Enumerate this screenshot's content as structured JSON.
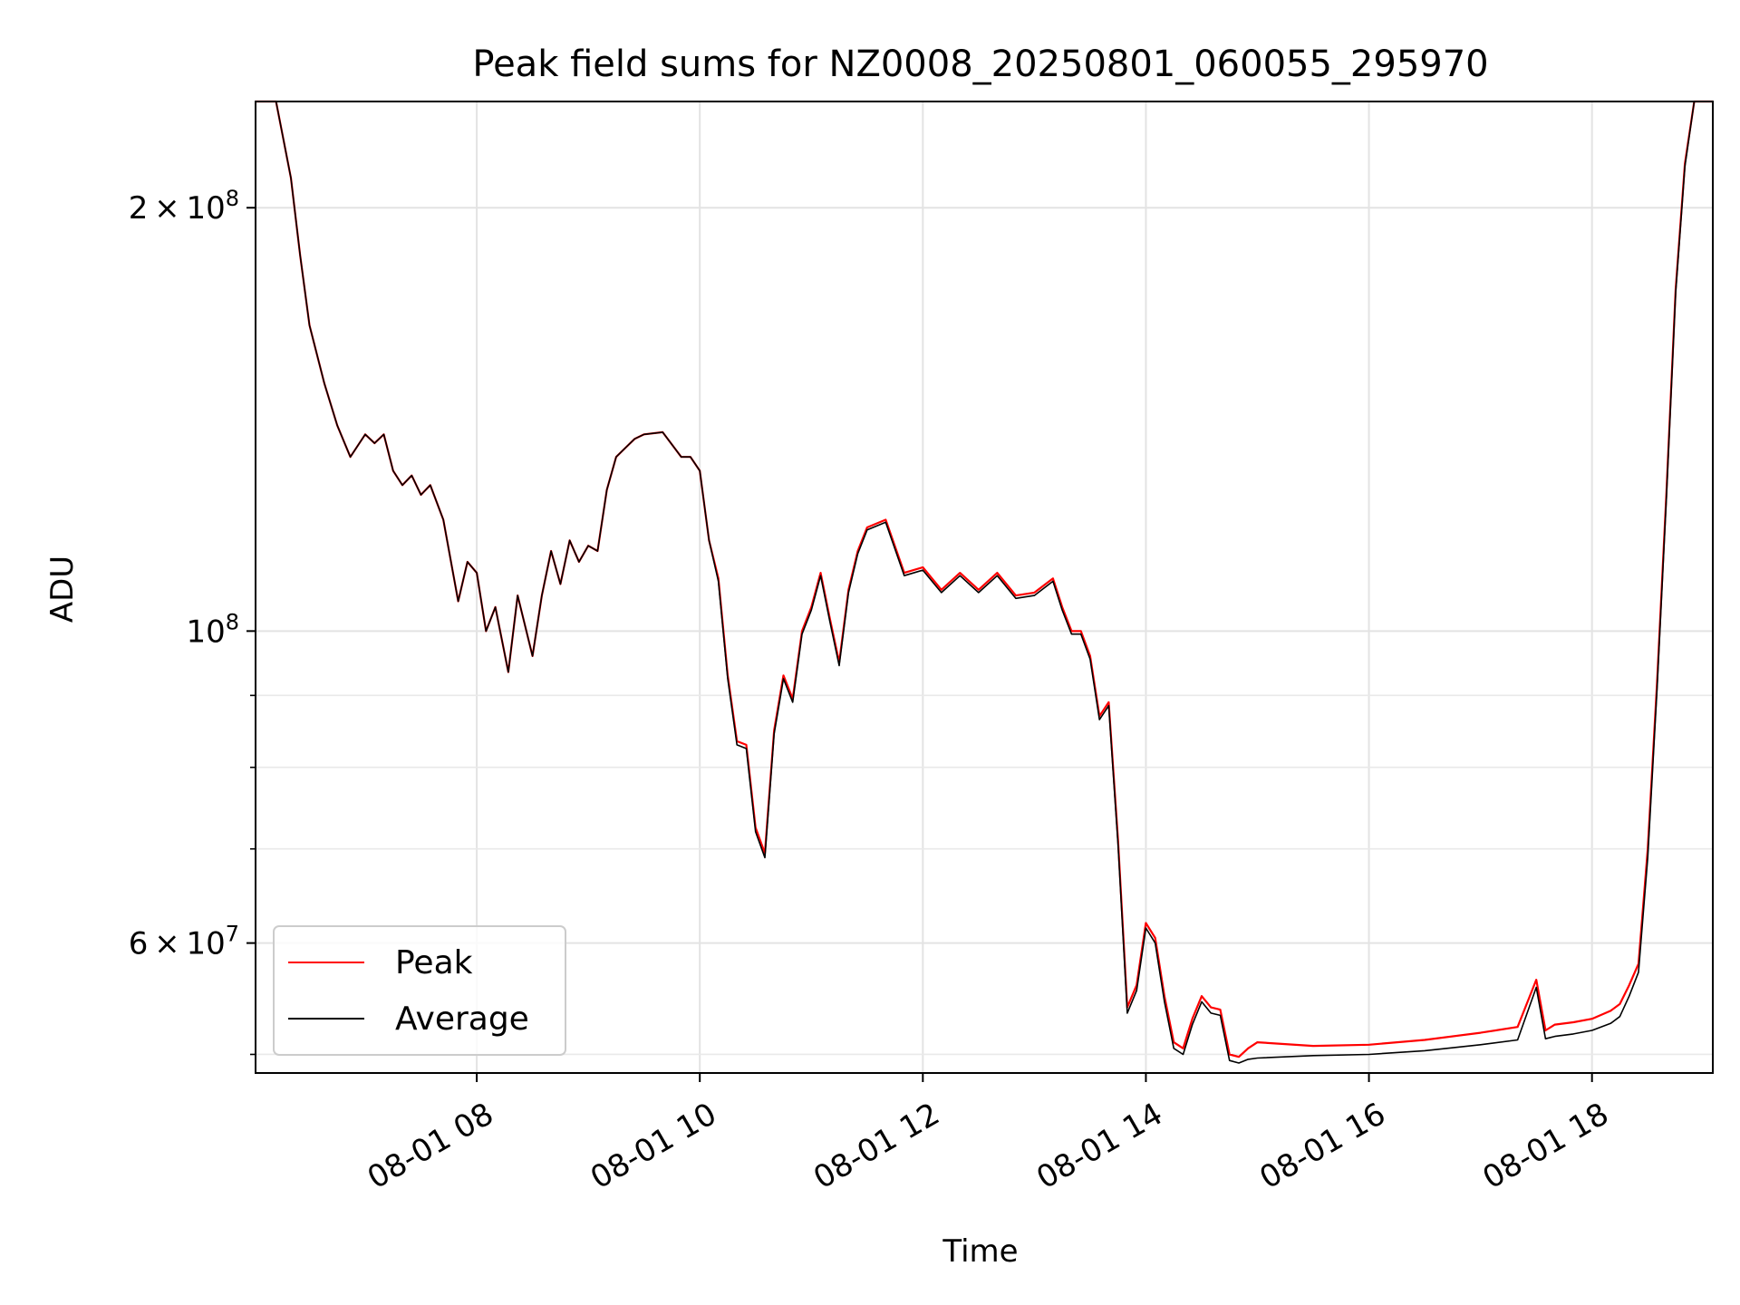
{
  "chart_data": {
    "type": "line",
    "title": "Peak field sums for NZ0008_20250801_060055_295970",
    "xlabel": "Time",
    "ylabel": "ADU",
    "yscale": "log",
    "grid": true,
    "legend_position": "lower-left",
    "xlim": [
      "2025-08-01 06:01",
      "2025-08-01 19:05"
    ],
    "ylim": [
      48500000,
      238000000
    ],
    "x_ticks": [
      {
        "value": "2025-08-01 08:00",
        "label": "08-01 08"
      },
      {
        "value": "2025-08-01 10:00",
        "label": "08-01 10"
      },
      {
        "value": "2025-08-01 12:00",
        "label": "08-01 12"
      },
      {
        "value": "2025-08-01 14:00",
        "label": "08-01 14"
      },
      {
        "value": "2025-08-01 16:00",
        "label": "08-01 16"
      },
      {
        "value": "2025-08-01 18:00",
        "label": "08-01 18"
      }
    ],
    "y_ticks": [
      {
        "value": 200000000,
        "base": "2",
        "exp": "8",
        "label": "2 × 10^8"
      },
      {
        "value": 100000000,
        "base": "",
        "exp": "8",
        "label": "10^8"
      },
      {
        "value": 60000000,
        "base": "6",
        "exp": "7",
        "label": "6 × 10^7"
      }
    ],
    "y_minor_ticks": [
      50000000,
      70000000,
      80000000,
      90000000
    ],
    "series": [
      {
        "name": "Peak",
        "color": "#ff0000",
        "x": [
          "2025-08-01 06:01",
          "2025-08-01 06:12",
          "2025-08-01 06:20",
          "2025-08-01 06:25",
          "2025-08-01 06:30",
          "2025-08-01 06:38",
          "2025-08-01 06:45",
          "2025-08-01 06:52",
          "2025-08-01 07:00",
          "2025-08-01 07:05",
          "2025-08-01 07:10",
          "2025-08-01 07:15",
          "2025-08-01 07:20",
          "2025-08-01 07:25",
          "2025-08-01 07:30",
          "2025-08-01 07:35",
          "2025-08-01 07:42",
          "2025-08-01 07:50",
          "2025-08-01 07:55",
          "2025-08-01 08:00",
          "2025-08-01 08:05",
          "2025-08-01 08:10",
          "2025-08-01 08:17",
          "2025-08-01 08:22",
          "2025-08-01 08:30",
          "2025-08-01 08:35",
          "2025-08-01 08:40",
          "2025-08-01 08:45",
          "2025-08-01 08:50",
          "2025-08-01 08:55",
          "2025-08-01 09:00",
          "2025-08-01 09:05",
          "2025-08-01 09:10",
          "2025-08-01 09:15",
          "2025-08-01 09:20",
          "2025-08-01 09:25",
          "2025-08-01 09:30",
          "2025-08-01 09:40",
          "2025-08-01 09:50",
          "2025-08-01 09:55",
          "2025-08-01 10:00",
          "2025-08-01 10:05",
          "2025-08-01 10:10",
          "2025-08-01 10:15",
          "2025-08-01 10:20",
          "2025-08-01 10:25",
          "2025-08-01 10:30",
          "2025-08-01 10:35",
          "2025-08-01 10:40",
          "2025-08-01 10:45",
          "2025-08-01 10:50",
          "2025-08-01 10:55",
          "2025-08-01 11:00",
          "2025-08-01 11:05",
          "2025-08-01 11:10",
          "2025-08-01 11:15",
          "2025-08-01 11:20",
          "2025-08-01 11:25",
          "2025-08-01 11:30",
          "2025-08-01 11:40",
          "2025-08-01 11:50",
          "2025-08-01 12:00",
          "2025-08-01 12:10",
          "2025-08-01 12:20",
          "2025-08-01 12:30",
          "2025-08-01 12:40",
          "2025-08-01 12:50",
          "2025-08-01 13:00",
          "2025-08-01 13:10",
          "2025-08-01 13:15",
          "2025-08-01 13:20",
          "2025-08-01 13:25",
          "2025-08-01 13:30",
          "2025-08-01 13:35",
          "2025-08-01 13:40",
          "2025-08-01 13:45",
          "2025-08-01 13:50",
          "2025-08-01 13:55",
          "2025-08-01 14:00",
          "2025-08-01 14:05",
          "2025-08-01 14:10",
          "2025-08-01 14:15",
          "2025-08-01 14:20",
          "2025-08-01 14:25",
          "2025-08-01 14:30",
          "2025-08-01 14:35",
          "2025-08-01 14:40",
          "2025-08-01 14:45",
          "2025-08-01 14:50",
          "2025-08-01 14:55",
          "2025-08-01 15:00",
          "2025-08-01 15:30",
          "2025-08-01 16:00",
          "2025-08-01 16:30",
          "2025-08-01 17:00",
          "2025-08-01 17:20",
          "2025-08-01 17:30",
          "2025-08-01 17:35",
          "2025-08-01 17:40",
          "2025-08-01 17:50",
          "2025-08-01 18:00",
          "2025-08-01 18:10",
          "2025-08-01 18:15",
          "2025-08-01 18:20",
          "2025-08-01 18:25",
          "2025-08-01 18:30",
          "2025-08-01 18:35",
          "2025-08-01 18:40",
          "2025-08-01 18:45",
          "2025-08-01 18:50",
          "2025-08-01 18:55",
          "2025-08-01 19:05"
        ],
        "y": [
          238000000,
          238000000,
          210000000,
          185000000,
          165000000,
          150000000,
          140000000,
          133000000,
          138000000,
          136000000,
          138000000,
          130000000,
          127000000,
          129000000,
          125000000,
          127000000,
          120000000,
          105000000,
          112000000,
          110000000,
          100000000,
          104000000,
          93500000,
          106000000,
          96000000,
          106000000,
          114000000,
          108000000,
          116000000,
          112000000,
          115000000,
          114000000,
          126000000,
          133000000,
          135000000,
          137000000,
          138000000,
          138500000,
          133000000,
          133000000,
          130000000,
          116000000,
          109000000,
          93000000,
          83500000,
          83000000,
          72500000,
          69500000,
          85000000,
          93000000,
          89500000,
          100000000,
          104000000,
          110000000,
          102000000,
          95000000,
          107000000,
          114000000,
          118500000,
          120000000,
          110000000,
          111000000,
          107000000,
          110000000,
          107000000,
          110000000,
          106000000,
          106500000,
          109000000,
          104000000,
          100000000,
          100000000,
          96000000,
          87000000,
          89000000,
          71000000,
          54000000,
          56000000,
          62000000,
          60500000,
          55000000,
          51000000,
          50500000,
          53000000,
          55000000,
          54000000,
          53800000,
          50000000,
          49800000,
          50500000,
          51000000,
          50700000,
          50800000,
          51200000,
          51800000,
          52300000,
          56500000,
          52000000,
          52500000,
          52700000,
          53000000,
          53700000,
          54300000,
          56000000,
          58000000,
          70000000,
          92000000,
          125000000,
          175000000,
          215000000,
          238000000,
          238000000
        ]
      },
      {
        "name": "Average",
        "color": "#000000",
        "x": [
          "2025-08-01 06:01",
          "2025-08-01 06:12",
          "2025-08-01 06:20",
          "2025-08-01 06:25",
          "2025-08-01 06:30",
          "2025-08-01 06:38",
          "2025-08-01 06:45",
          "2025-08-01 06:52",
          "2025-08-01 07:00",
          "2025-08-01 07:05",
          "2025-08-01 07:10",
          "2025-08-01 07:15",
          "2025-08-01 07:20",
          "2025-08-01 07:25",
          "2025-08-01 07:30",
          "2025-08-01 07:35",
          "2025-08-01 07:42",
          "2025-08-01 07:50",
          "2025-08-01 07:55",
          "2025-08-01 08:00",
          "2025-08-01 08:05",
          "2025-08-01 08:10",
          "2025-08-01 08:17",
          "2025-08-01 08:22",
          "2025-08-01 08:30",
          "2025-08-01 08:35",
          "2025-08-01 08:40",
          "2025-08-01 08:45",
          "2025-08-01 08:50",
          "2025-08-01 08:55",
          "2025-08-01 09:00",
          "2025-08-01 09:05",
          "2025-08-01 09:10",
          "2025-08-01 09:15",
          "2025-08-01 09:20",
          "2025-08-01 09:25",
          "2025-08-01 09:30",
          "2025-08-01 09:40",
          "2025-08-01 09:50",
          "2025-08-01 09:55",
          "2025-08-01 10:00",
          "2025-08-01 10:05",
          "2025-08-01 10:10",
          "2025-08-01 10:15",
          "2025-08-01 10:20",
          "2025-08-01 10:25",
          "2025-08-01 10:30",
          "2025-08-01 10:35",
          "2025-08-01 10:40",
          "2025-08-01 10:45",
          "2025-08-01 10:50",
          "2025-08-01 10:55",
          "2025-08-01 11:00",
          "2025-08-01 11:05",
          "2025-08-01 11:10",
          "2025-08-01 11:15",
          "2025-08-01 11:20",
          "2025-08-01 11:25",
          "2025-08-01 11:30",
          "2025-08-01 11:40",
          "2025-08-01 11:50",
          "2025-08-01 12:00",
          "2025-08-01 12:10",
          "2025-08-01 12:20",
          "2025-08-01 12:30",
          "2025-08-01 12:40",
          "2025-08-01 12:50",
          "2025-08-01 13:00",
          "2025-08-01 13:10",
          "2025-08-01 13:15",
          "2025-08-01 13:20",
          "2025-08-01 13:25",
          "2025-08-01 13:30",
          "2025-08-01 13:35",
          "2025-08-01 13:40",
          "2025-08-01 13:45",
          "2025-08-01 13:50",
          "2025-08-01 13:55",
          "2025-08-01 14:00",
          "2025-08-01 14:05",
          "2025-08-01 14:10",
          "2025-08-01 14:15",
          "2025-08-01 14:20",
          "2025-08-01 14:25",
          "2025-08-01 14:30",
          "2025-08-01 14:35",
          "2025-08-01 14:40",
          "2025-08-01 14:45",
          "2025-08-01 14:50",
          "2025-08-01 14:55",
          "2025-08-01 15:00",
          "2025-08-01 15:30",
          "2025-08-01 16:00",
          "2025-08-01 16:30",
          "2025-08-01 17:00",
          "2025-08-01 17:20",
          "2025-08-01 17:30",
          "2025-08-01 17:35",
          "2025-08-01 17:40",
          "2025-08-01 17:50",
          "2025-08-01 18:00",
          "2025-08-01 18:10",
          "2025-08-01 18:15",
          "2025-08-01 18:20",
          "2025-08-01 18:25",
          "2025-08-01 18:30",
          "2025-08-01 18:35",
          "2025-08-01 18:40",
          "2025-08-01 18:45",
          "2025-08-01 18:50",
          "2025-08-01 18:55",
          "2025-08-01 19:05"
        ],
        "y": [
          238000000,
          238000000,
          210000000,
          185000000,
          165000000,
          150000000,
          140000000,
          133000000,
          138000000,
          136000000,
          138000000,
          130000000,
          127000000,
          129000000,
          125000000,
          127000000,
          120000000,
          105000000,
          112000000,
          110000000,
          100000000,
          104000000,
          93500000,
          106000000,
          96000000,
          106000000,
          114000000,
          108000000,
          116000000,
          112000000,
          115000000,
          114000000,
          126000000,
          133000000,
          135000000,
          137000000,
          138000000,
          138500000,
          133000000,
          133000000,
          130000000,
          116000000,
          108500000,
          92500000,
          83000000,
          82500000,
          72000000,
          69000000,
          84500000,
          92500000,
          89000000,
          99500000,
          103500000,
          109500000,
          101500000,
          94500000,
          106500000,
          113500000,
          118000000,
          119500000,
          109500000,
          110500000,
          106500000,
          109500000,
          106500000,
          109500000,
          105500000,
          106000000,
          108500000,
          103500000,
          99500000,
          99500000,
          95500000,
          86500000,
          88500000,
          70500000,
          53500000,
          55500000,
          61500000,
          60000000,
          54500000,
          50500000,
          50000000,
          52500000,
          54500000,
          53500000,
          53300000,
          49500000,
          49300000,
          49600000,
          49700000,
          49900000,
          50000000,
          50300000,
          50800000,
          51200000,
          55800000,
          51300000,
          51500000,
          51700000,
          52000000,
          52600000,
          53200000,
          55000000,
          57200000,
          69000000,
          91000000,
          124000000,
          174000000,
          214000000,
          238000000,
          238000000
        ]
      }
    ]
  }
}
